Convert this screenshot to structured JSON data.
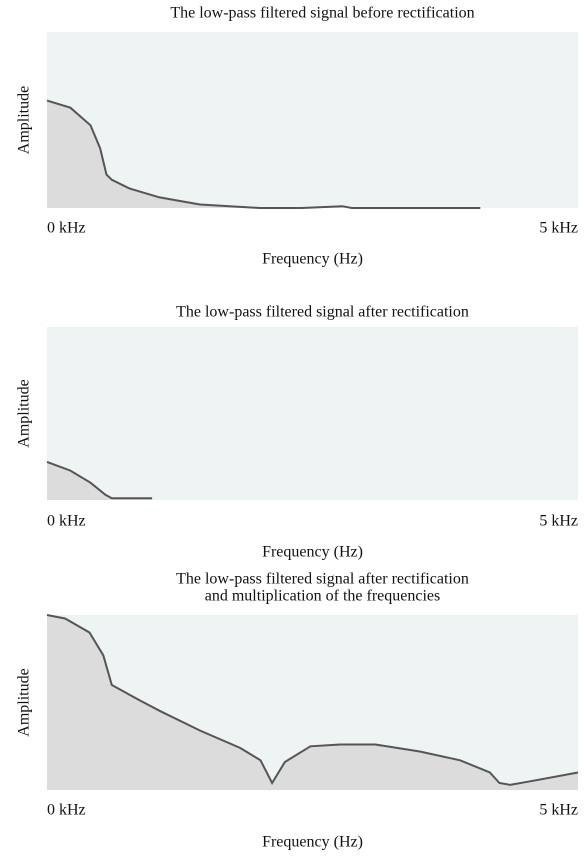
{
  "chart_data": [
    {
      "type": "area",
      "title": [
        "The low-pass filtered signal before rectification"
      ],
      "xlabel": "Frequency (Hz)",
      "ylabel": "Amplitude",
      "x": [
        0,
        0.22,
        0.41,
        0.5,
        0.56,
        0.61,
        0.78,
        1.06,
        1.44,
        1.72,
        2.0,
        2.4,
        2.78,
        2.87,
        4.08
      ],
      "values": [
        0.61,
        0.57,
        0.47,
        0.34,
        0.19,
        0.16,
        0.11,
        0.06,
        0.02,
        0.01,
        0,
        0,
        0.01,
        0,
        0
      ],
      "xlim": [
        0,
        5
      ],
      "xticks": [
        {
          "value": 0,
          "label": "0 kHz"
        },
        {
          "value": 5,
          "label": "5 kHz"
        }
      ],
      "ylim": [
        0,
        1
      ],
      "color": "#555555",
      "fill": "#dcdcdc",
      "background": "#eef3f4"
    },
    {
      "type": "area",
      "title": [
        "The low-pass filtered signal after rectification"
      ],
      "xlabel": "Frequency (Hz)",
      "ylabel": "Amplitude",
      "x": [
        0,
        0.22,
        0.41,
        0.55,
        0.61,
        0.78,
        0.99
      ],
      "values": [
        0.22,
        0.17,
        0.1,
        0.03,
        0.01,
        0.01,
        0.01
      ],
      "xlim": [
        0,
        5
      ],
      "xticks": [
        {
          "value": 0,
          "label": "0 kHz"
        },
        {
          "value": 5,
          "label": "5 kHz"
        }
      ],
      "ylim": [
        0,
        1
      ],
      "color": "#555555",
      "fill": "#dcdcdc",
      "background": "#eef3f4"
    },
    {
      "type": "area",
      "title": [
        "The low-pass filtered signal after rectification",
        "and multiplication of the frequencies"
      ],
      "xlabel": "Frequency (Hz)",
      "ylabel": "Amplitude",
      "x": [
        0,
        0.17,
        0.4,
        0.53,
        0.61,
        0.88,
        1.07,
        1.44,
        1.82,
        2.01,
        2.12,
        2.24,
        2.48,
        2.76,
        3.09,
        3.51,
        3.89,
        4.17,
        4.26,
        4.36,
        4.55,
        5.0
      ],
      "values": [
        1.0,
        0.98,
        0.9,
        0.77,
        0.6,
        0.51,
        0.45,
        0.34,
        0.24,
        0.17,
        0.04,
        0.16,
        0.25,
        0.26,
        0.26,
        0.22,
        0.17,
        0.1,
        0.04,
        0.03,
        0.05,
        0.1
      ],
      "xlim": [
        0,
        5
      ],
      "xticks": [
        {
          "value": 0,
          "label": "0 kHz"
        },
        {
          "value": 5,
          "label": "5 kHz"
        }
      ],
      "ylim": [
        0,
        1
      ],
      "color": "#555555",
      "fill": "#dcdcdc",
      "background": "#eef3f4"
    }
  ]
}
